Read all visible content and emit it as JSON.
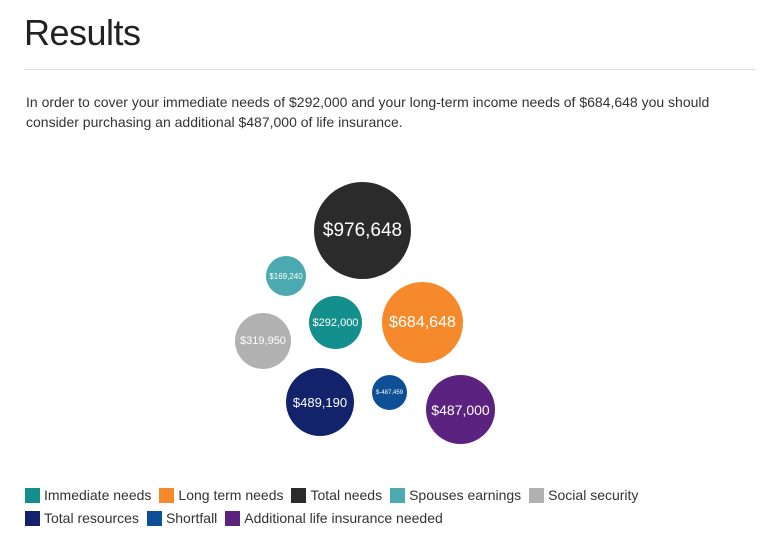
{
  "page": {
    "title": "Results",
    "summary": "In order to cover your immediate needs of $292,000 and your long-term income needs of $684,648 you should consider purchasing an additional $487,000 of life insurance."
  },
  "colors": {
    "immediate_needs": "#138f8d",
    "long_term_needs": "#f5892b",
    "total_needs": "#2b2b2b",
    "spouses_earnings": "#4aaab0",
    "social_security": "#b1b1b1",
    "total_resources": "#13236b",
    "shortfall": "#0f4f96",
    "additional_insurance": "#5b237f"
  },
  "bubbles": [
    {
      "key": "total_needs",
      "label": "$976,648"
    },
    {
      "key": "spouses_earnings",
      "label": "$169,240"
    },
    {
      "key": "immediate_needs",
      "label": "$292,000"
    },
    {
      "key": "long_term_needs",
      "label": "$684,648"
    },
    {
      "key": "social_security",
      "label": "$319,950"
    },
    {
      "key": "total_resources",
      "label": "$489,190"
    },
    {
      "key": "shortfall",
      "label": "$-487,459"
    },
    {
      "key": "additional_insurance",
      "label": "$487,000"
    }
  ],
  "legend": [
    {
      "key": "immediate_needs",
      "label": "Immediate needs"
    },
    {
      "key": "long_term_needs",
      "label": "Long term needs"
    },
    {
      "key": "total_needs",
      "label": "Total needs"
    },
    {
      "key": "spouses_earnings",
      "label": "Spouses earnings"
    },
    {
      "key": "social_security",
      "label": "Social security"
    },
    {
      "key": "total_resources",
      "label": "Total resources"
    },
    {
      "key": "shortfall",
      "label": "Shortfall"
    },
    {
      "key": "additional_insurance",
      "label": "Additional life insurance needed"
    }
  ]
}
